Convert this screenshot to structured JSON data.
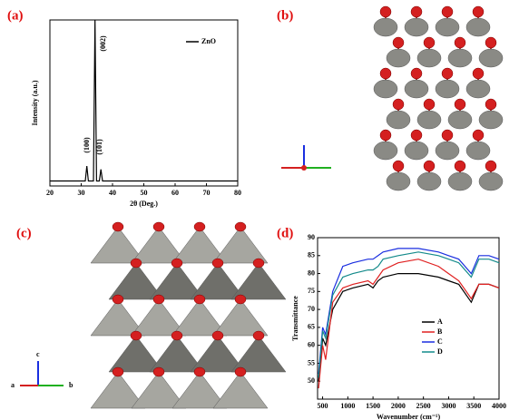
{
  "panels": [
    "(a)",
    "(b)",
    "(c)",
    "(d)"
  ],
  "structure_c_axes": [
    "c",
    "a",
    "b"
  ],
  "chart_data": [
    {
      "type": "line",
      "xlabel": "2θ (Deg.)",
      "ylabel": "Intensity (a.u.)",
      "annotations": [
        "(100)",
        "(002)",
        "(101)"
      ],
      "xlim": [
        20,
        80
      ],
      "xticks": [
        20,
        30,
        40,
        50,
        60,
        70,
        80
      ],
      "ylim": [
        0,
        100
      ],
      "series": [
        {
          "name": "ZnO",
          "color": "#000000",
          "x": [
            20,
            31.3,
            31.8,
            32.3,
            33.9,
            34.4,
            34.9,
            35.8,
            36.3,
            36.8,
            80
          ],
          "values": [
            3,
            3,
            12,
            3,
            3,
            100,
            3,
            3,
            10,
            3,
            3
          ]
        }
      ]
    },
    {
      "type": "line",
      "xlabel": "Wavenumber (cm⁻¹)",
      "ylabel": "Transmittance",
      "xlim": [
        400,
        4000
      ],
      "xticks": [
        500,
        1000,
        1500,
        2000,
        2500,
        3000,
        3500,
        4000
      ],
      "ylim": [
        45,
        90
      ],
      "yticks": [
        50,
        55,
        60,
        65,
        70,
        75,
        80,
        85,
        90
      ],
      "x": [
        420,
        500,
        560,
        700,
        900,
        1100,
        1400,
        1500,
        1600,
        1700,
        2000,
        2400,
        2800,
        3000,
        3200,
        3450,
        3600,
        3800,
        4000
      ],
      "series": [
        {
          "name": "A",
          "color": "#000000",
          "values": [
            50,
            62,
            60,
            70,
            75,
            76,
            77,
            76,
            78,
            79,
            80,
            80,
            79,
            78,
            77,
            72,
            77,
            77,
            76
          ]
        },
        {
          "name": "B",
          "color": "#e02020",
          "values": [
            48,
            60,
            56,
            72,
            76,
            77,
            78,
            77,
            79,
            81,
            83,
            84,
            82,
            80,
            78,
            73,
            77,
            77,
            76
          ]
        },
        {
          "name": "C",
          "color": "#1a2ee0",
          "values": [
            52,
            65,
            63,
            75,
            82,
            83,
            84,
            84,
            85,
            86,
            87,
            87,
            86,
            85,
            84,
            80,
            85,
            85,
            84
          ]
        },
        {
          "name": "D",
          "color": "#138a8a",
          "values": [
            51,
            64,
            62,
            74,
            79,
            80,
            81,
            81,
            82,
            84,
            85,
            86,
            85,
            84,
            83,
            79,
            84,
            84,
            83
          ]
        }
      ]
    }
  ]
}
